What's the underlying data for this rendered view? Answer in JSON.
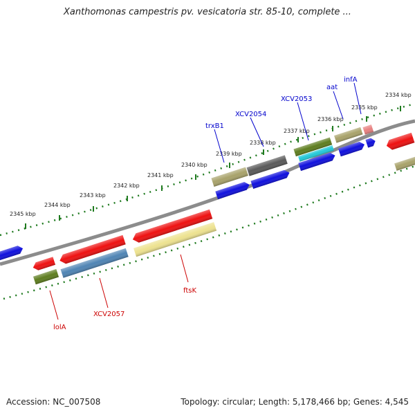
{
  "title": "Xanthomonas campestris pv. vesicatoria str. 85-10, complete ...",
  "footer": {
    "accession": "Accession: NC_007508",
    "topology": "Topology: circular; Length: 5,178,466 bp; Genes: 4,545"
  },
  "colors": {
    "backbone": "#8c8c8c",
    "ticks": "#1f7a1f",
    "label_top": "#0000cc",
    "label_bottom": "#cc0000",
    "red": "#ee1111",
    "blue": "#1010dd",
    "olive": "#a8a26a",
    "dark_olive": "#5e7d1f",
    "gray": "#5a5a5a",
    "cyan": "#22c8d8",
    "pink": "#e88080",
    "steel": "#4f84b4",
    "yellow": "#ede28f"
  },
  "scale_labels": [
    "2334 kbp",
    "2335 kbp",
    "2336 kbp",
    "2337 kbp",
    "2338 kbp",
    "2339 kbp",
    "2340 kbp",
    "2341 kbp",
    "2342 kbp",
    "2343 kbp",
    "2344 kbp",
    "2345 kbp"
  ],
  "gene_labels_top": [
    "infA",
    "aat",
    "XCV2053",
    "XCV2054",
    "trxB1"
  ],
  "gene_labels_bottom": [
    "ftsK",
    "XCV2057",
    "lolA"
  ]
}
